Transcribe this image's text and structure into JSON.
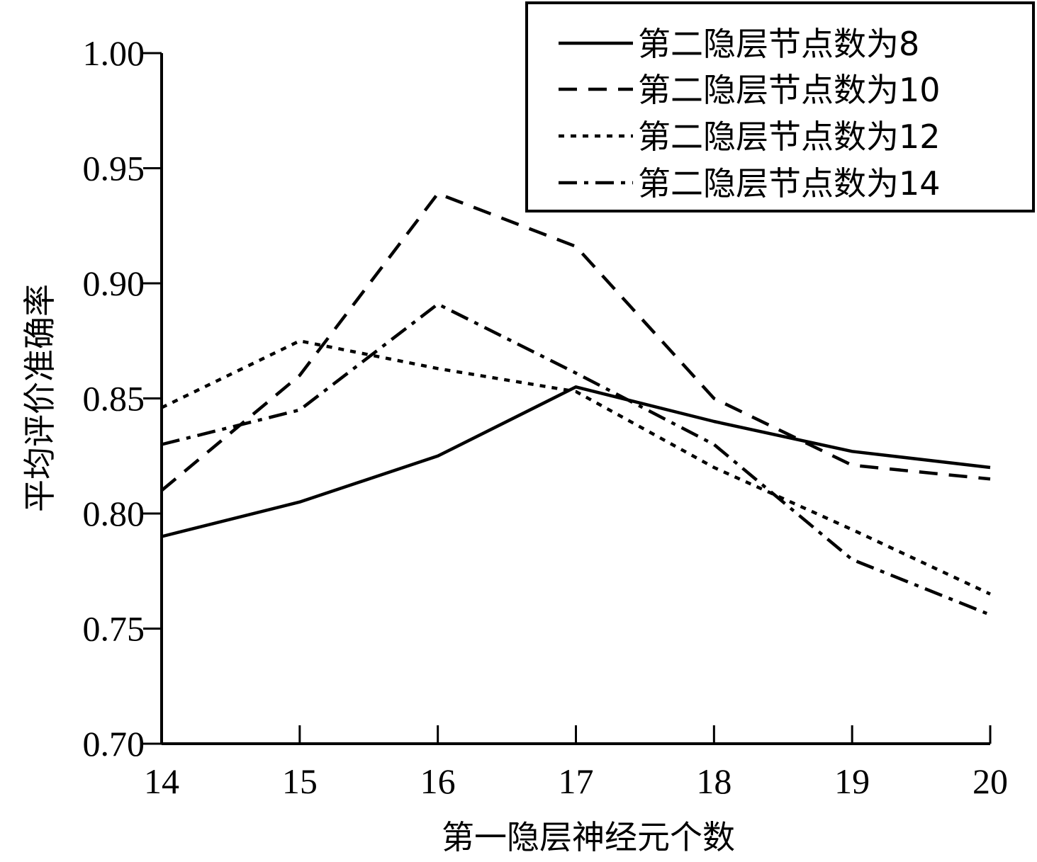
{
  "chart_data": {
    "type": "line",
    "xlabel": "第一隐层神经元个数",
    "ylabel": "平均评价准确率",
    "x": [
      14,
      15,
      16,
      17,
      18,
      19,
      20
    ],
    "xlim": [
      14,
      20
    ],
    "ylim": [
      0.7,
      1.0
    ],
    "x_ticks": [
      14,
      15,
      16,
      17,
      18,
      19,
      20
    ],
    "x_tick_labels": [
      "14",
      "15",
      "16",
      "17",
      "18",
      "19",
      "20"
    ],
    "y_ticks": [
      0.7,
      0.75,
      0.8,
      0.85,
      0.9,
      0.95,
      1.0
    ],
    "y_tick_labels": [
      "0.70",
      "0.75",
      "0.80",
      "0.85",
      "0.90",
      "0.95",
      "1.00"
    ],
    "grid": false,
    "legend_position": "top-right",
    "series": [
      {
        "name": "第二隐层节点数为8",
        "dash": "solid",
        "values": [
          0.79,
          0.805,
          0.825,
          0.855,
          0.84,
          0.827,
          0.82
        ]
      },
      {
        "name": "第二隐层节点数为10",
        "dash": "dashed",
        "values": [
          0.81,
          0.86,
          0.939,
          0.916,
          0.85,
          0.821,
          0.815
        ]
      },
      {
        "name": "第二隐层节点数为12",
        "dash": "dotted",
        "values": [
          0.846,
          0.875,
          0.863,
          0.853,
          0.82,
          0.793,
          0.765
        ]
      },
      {
        "name": "第二隐层节点数为14",
        "dash": "dash-dot",
        "values": [
          0.83,
          0.845,
          0.891,
          0.861,
          0.83,
          0.78,
          0.756
        ]
      }
    ],
    "colors": {
      "line": "#000000",
      "background": "#ffffff"
    }
  }
}
